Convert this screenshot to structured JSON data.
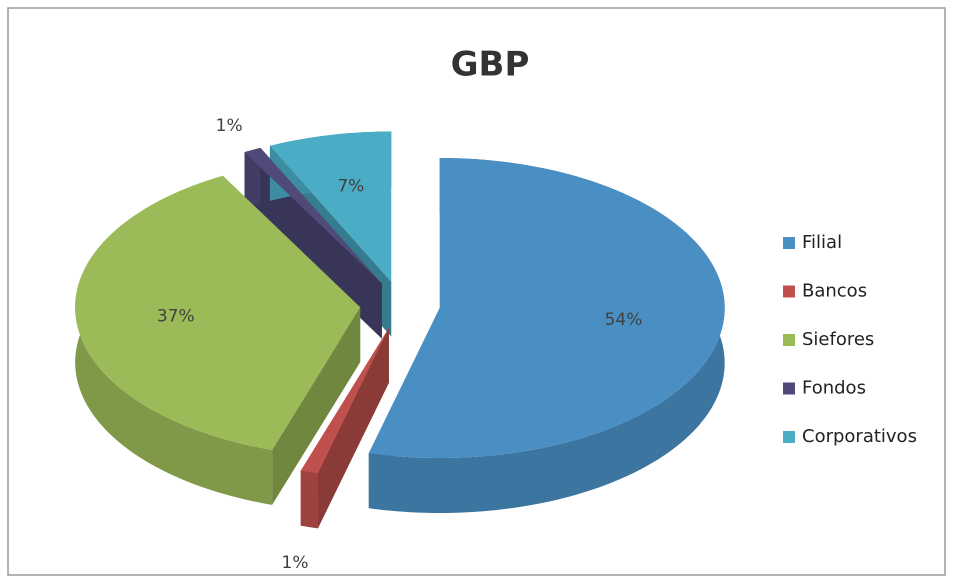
{
  "chart_data": {
    "type": "pie",
    "title": "GBP",
    "categories": [
      "Filial",
      "Bancos",
      "Siefores",
      "Fondos",
      "Corporativos"
    ],
    "values": [
      54,
      1,
      37,
      1,
      7
    ],
    "value_labels": [
      "54%",
      "1%",
      "37%",
      "1%",
      "7%"
    ],
    "colors": [
      "#4a8fc4",
      "#c0504d",
      "#9bbb59",
      "#4f4a7a",
      "#4bacc6"
    ],
    "legend": "right",
    "exploded": true
  }
}
